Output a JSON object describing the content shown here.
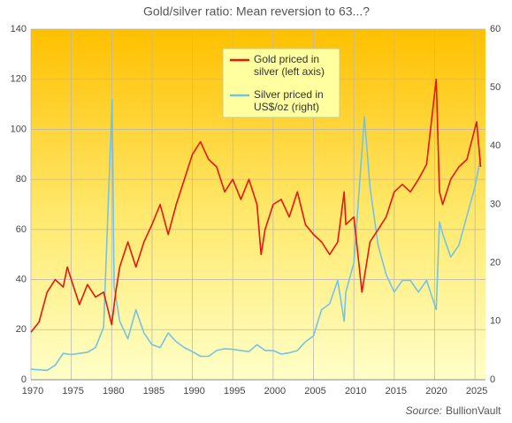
{
  "chart_data": {
    "type": "line",
    "title": "Gold/silver ratio: Mean reversion to 63...?",
    "source_label": "Source:",
    "source": "BullionVault",
    "xlim": [
      1970,
      2026.3
    ],
    "xticks": [
      1970,
      1975,
      1980,
      1985,
      1990,
      1995,
      2000,
      2005,
      2010,
      2015,
      2020,
      2025
    ],
    "ylim": [
      0,
      140
    ],
    "yticks": [
      0,
      20,
      40,
      60,
      80,
      100,
      120,
      140
    ],
    "y2lim": [
      0,
      60
    ],
    "y2ticks": [
      0,
      10,
      20,
      30,
      40,
      50,
      60
    ],
    "grid": true,
    "legend": "top",
    "series": [
      {
        "name": "Gold priced in silver (left axis)",
        "color": "#e8160c",
        "x": [
          1970,
          1971,
          1972,
          1973,
          1974,
          1974.5,
          1975,
          1976,
          1977,
          1978,
          1979,
          1980,
          1980.5,
          1981,
          1982,
          1983,
          1984,
          1985,
          1986,
          1987,
          1988,
          1989,
          1990,
          1991,
          1992,
          1993,
          1994,
          1995,
          1996,
          1997,
          1998,
          1998.5,
          1999,
          2000,
          2001,
          2002,
          2003,
          2004,
          2005,
          2006,
          2007,
          2008,
          2008.8,
          2009,
          2010,
          2011,
          2011.5,
          2012,
          2013,
          2014,
          2015,
          2016,
          2017,
          2018,
          2019,
          2020.2,
          2020.6,
          2021,
          2022,
          2023,
          2024,
          2025.2,
          2025.7
        ],
        "values": [
          19,
          23,
          35,
          40,
          37,
          45,
          40,
          30,
          38,
          33,
          35,
          22,
          35,
          45,
          55,
          45,
          55,
          62,
          70,
          58,
          70,
          80,
          90,
          95,
          88,
          85,
          75,
          80,
          72,
          80,
          70,
          50,
          60,
          70,
          72,
          65,
          75,
          62,
          58,
          55,
          50,
          55,
          75,
          62,
          65,
          35,
          45,
          55,
          60,
          65,
          75,
          78,
          75,
          80,
          86,
          120,
          75,
          70,
          80,
          85,
          88,
          103,
          85
        ]
      },
      {
        "name": "Silver priced in US$/oz (right)",
        "color": "#72c4e6",
        "axis": "y2",
        "x": [
          1970,
          1972,
          1973,
          1974,
          1975,
          1976,
          1977,
          1978,
          1979,
          1980.05,
          1980.3,
          1981,
          1982,
          1983,
          1984,
          1985,
          1986,
          1987,
          1988,
          1989,
          1990,
          1991,
          1992,
          1993,
          1994,
          1995,
          1996,
          1997,
          1998,
          1999,
          2000,
          2001,
          2002,
          2003,
          2004,
          2005,
          2006,
          2007,
          2008,
          2008.8,
          2009,
          2010,
          2011.3,
          2012,
          2013,
          2014,
          2015,
          2016,
          2017,
          2018,
          2019,
          2020.2,
          2020.6,
          2021,
          2022,
          2023,
          2024,
          2025,
          2025.7
        ],
        "values": [
          1.8,
          1.6,
          2.5,
          4.5,
          4.3,
          4.5,
          4.7,
          5.5,
          9,
          48,
          16,
          10,
          7,
          12,
          8,
          6,
          5.5,
          8,
          6.5,
          5.5,
          4.8,
          4,
          4,
          5,
          5.3,
          5.2,
          5,
          4.8,
          6,
          5,
          5,
          4.4,
          4.6,
          5,
          6.5,
          7.5,
          12,
          13,
          17,
          10,
          15,
          20,
          45,
          33,
          23,
          18,
          15,
          17,
          17,
          15,
          17,
          12,
          27,
          25,
          21,
          23,
          28,
          33,
          38
        ]
      }
    ]
  }
}
